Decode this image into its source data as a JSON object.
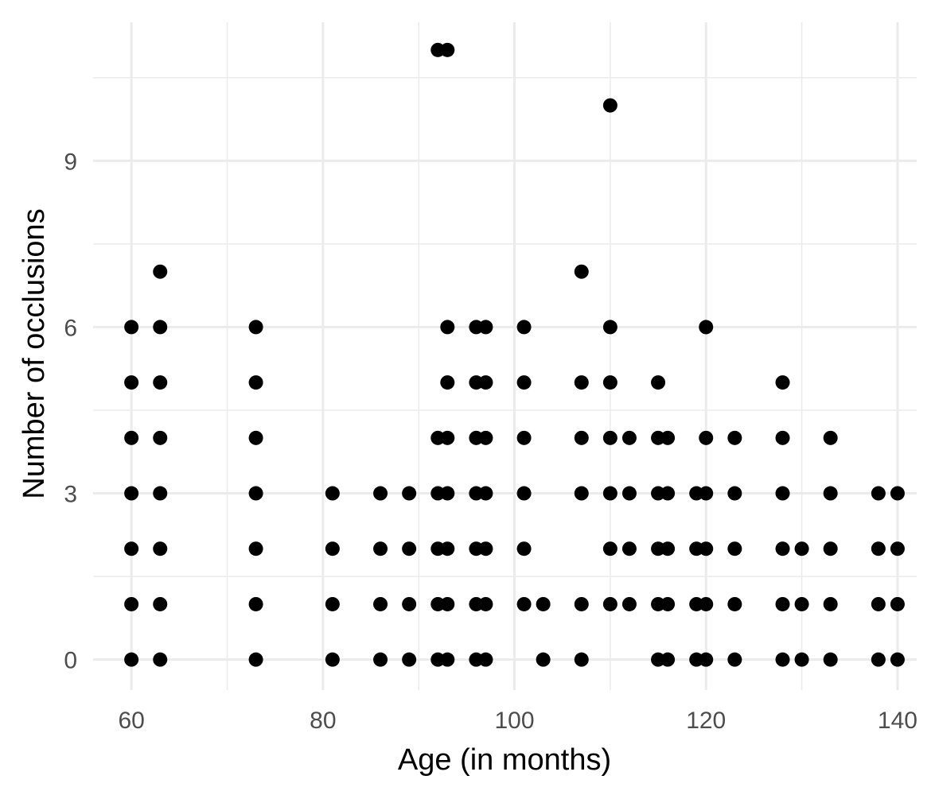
{
  "chart_data": {
    "type": "scatter",
    "xlabel": "Age (in months)",
    "ylabel": "Number of occlusions",
    "xlim": [
      56,
      142
    ],
    "ylim": [
      -0.55,
      11.5
    ],
    "x_ticks": [
      60,
      80,
      100,
      120,
      140
    ],
    "y_ticks": [
      0,
      3,
      6,
      9
    ],
    "x_minor": [
      70,
      90,
      110,
      130
    ],
    "y_minor": [
      1.5,
      4.5,
      7.5,
      10.5
    ],
    "grid": true,
    "point_color": "#000000",
    "series": [
      {
        "points": [
          [
            60,
            0
          ],
          [
            60,
            1
          ],
          [
            60,
            2
          ],
          [
            60,
            3
          ],
          [
            60,
            4
          ],
          [
            60,
            5
          ],
          [
            60,
            6
          ],
          [
            63,
            0
          ],
          [
            63,
            1
          ],
          [
            63,
            2
          ],
          [
            63,
            3
          ],
          [
            63,
            4
          ],
          [
            63,
            5
          ],
          [
            63,
            6
          ],
          [
            63,
            7
          ],
          [
            73,
            0
          ],
          [
            73,
            1
          ],
          [
            73,
            2
          ],
          [
            73,
            3
          ],
          [
            73,
            4
          ],
          [
            73,
            5
          ],
          [
            73,
            6
          ],
          [
            81,
            0
          ],
          [
            81,
            1
          ],
          [
            81,
            2
          ],
          [
            81,
            3
          ],
          [
            86,
            0
          ],
          [
            86,
            1
          ],
          [
            86,
            2
          ],
          [
            86,
            3
          ],
          [
            89,
            0
          ],
          [
            89,
            1
          ],
          [
            89,
            2
          ],
          [
            89,
            3
          ],
          [
            92,
            0
          ],
          [
            92,
            1
          ],
          [
            92,
            2
          ],
          [
            92,
            3
          ],
          [
            92,
            4
          ],
          [
            92,
            11
          ],
          [
            93,
            0
          ],
          [
            93,
            1
          ],
          [
            93,
            2
          ],
          [
            93,
            3
          ],
          [
            93,
            4
          ],
          [
            93,
            5
          ],
          [
            93,
            6
          ],
          [
            93,
            11
          ],
          [
            96,
            0
          ],
          [
            96,
            1
          ],
          [
            96,
            2
          ],
          [
            96,
            3
          ],
          [
            96,
            4
          ],
          [
            96,
            5
          ],
          [
            96,
            6
          ],
          [
            97,
            0
          ],
          [
            97,
            1
          ],
          [
            97,
            2
          ],
          [
            97,
            3
          ],
          [
            97,
            4
          ],
          [
            97,
            5
          ],
          [
            97,
            6
          ],
          [
            101,
            1
          ],
          [
            101,
            2
          ],
          [
            101,
            3
          ],
          [
            101,
            4
          ],
          [
            101,
            5
          ],
          [
            101,
            6
          ],
          [
            103,
            0
          ],
          [
            103,
            1
          ],
          [
            107,
            0
          ],
          [
            107,
            1
          ],
          [
            107,
            3
          ],
          [
            107,
            4
          ],
          [
            107,
            5
          ],
          [
            107,
            7
          ],
          [
            110,
            1
          ],
          [
            110,
            2
          ],
          [
            110,
            3
          ],
          [
            110,
            4
          ],
          [
            110,
            5
          ],
          [
            110,
            6
          ],
          [
            110,
            10
          ],
          [
            112,
            1
          ],
          [
            112,
            2
          ],
          [
            112,
            3
          ],
          [
            112,
            4
          ],
          [
            115,
            0
          ],
          [
            115,
            1
          ],
          [
            115,
            2
          ],
          [
            115,
            3
          ],
          [
            115,
            4
          ],
          [
            115,
            5
          ],
          [
            116,
            0
          ],
          [
            116,
            1
          ],
          [
            116,
            2
          ],
          [
            116,
            3
          ],
          [
            116,
            4
          ],
          [
            119,
            0
          ],
          [
            119,
            1
          ],
          [
            119,
            2
          ],
          [
            119,
            3
          ],
          [
            120,
            0
          ],
          [
            120,
            1
          ],
          [
            120,
            2
          ],
          [
            120,
            3
          ],
          [
            120,
            4
          ],
          [
            120,
            6
          ],
          [
            123,
            0
          ],
          [
            123,
            1
          ],
          [
            123,
            2
          ],
          [
            123,
            3
          ],
          [
            123,
            4
          ],
          [
            128,
            0
          ],
          [
            128,
            1
          ],
          [
            128,
            2
          ],
          [
            128,
            3
          ],
          [
            128,
            4
          ],
          [
            128,
            5
          ],
          [
            130,
            0
          ],
          [
            130,
            1
          ],
          [
            130,
            2
          ],
          [
            133,
            0
          ],
          [
            133,
            1
          ],
          [
            133,
            2
          ],
          [
            133,
            3
          ],
          [
            133,
            4
          ],
          [
            138,
            0
          ],
          [
            138,
            1
          ],
          [
            138,
            2
          ],
          [
            138,
            3
          ],
          [
            140,
            0
          ],
          [
            140,
            1
          ],
          [
            140,
            2
          ],
          [
            140,
            3
          ]
        ]
      }
    ]
  }
}
